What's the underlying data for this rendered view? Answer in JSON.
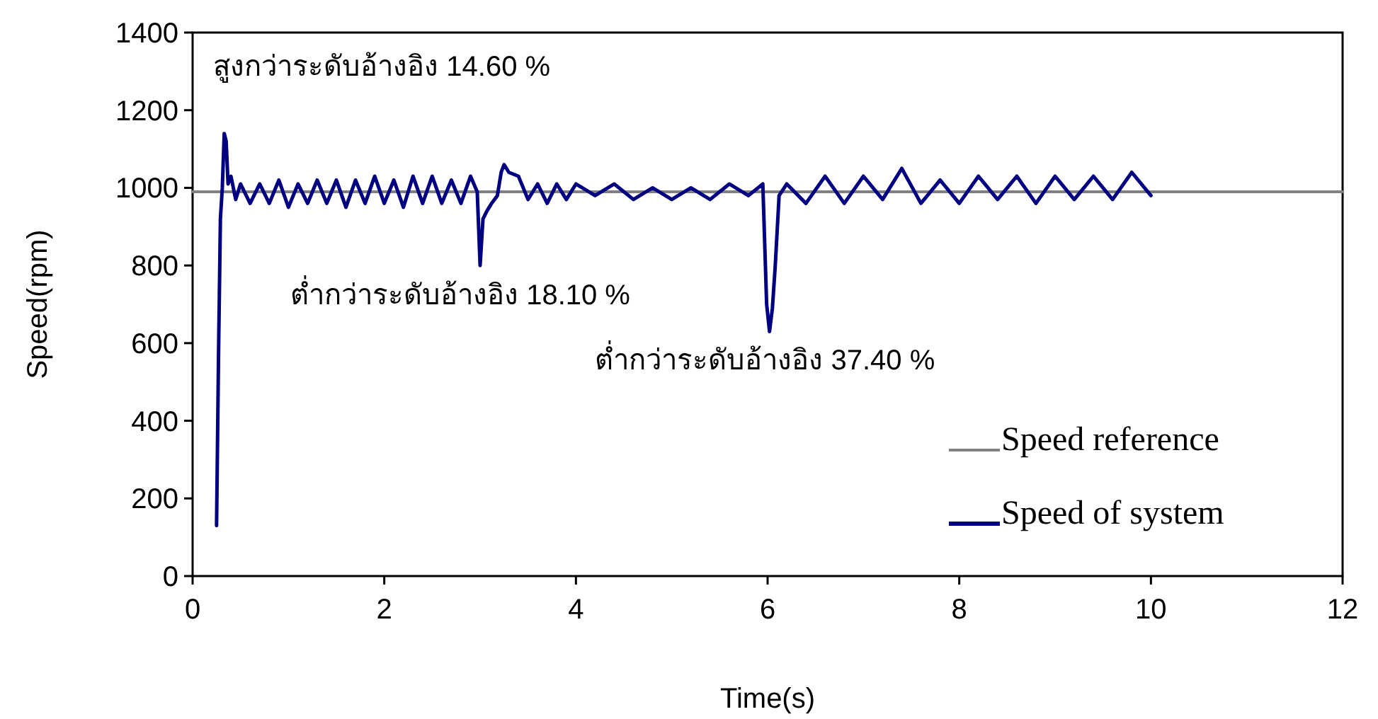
{
  "chart_data": {
    "type": "line",
    "xlabel": "Time(s)",
    "ylabel": "Speed(rpm)",
    "xlim": [
      0,
      12
    ],
    "xticks": [
      0,
      2,
      4,
      6,
      8,
      10,
      12
    ],
    "ylim": [
      0,
      1400
    ],
    "yticks": [
      0,
      200,
      400,
      600,
      800,
      1000,
      1200,
      1400
    ],
    "grid": false,
    "legend": "bottom right",
    "series": [
      {
        "name": "Speed reference",
        "color": "#808080",
        "x": [
          0,
          12
        ],
        "values": [
          990,
          990
        ]
      },
      {
        "name": "Speed of system",
        "color": "#000080",
        "x": [
          0.25,
          0.27,
          0.29,
          0.31,
          0.33,
          0.35,
          0.37,
          0.4,
          0.45,
          0.5,
          0.6,
          0.7,
          0.8,
          0.9,
          1.0,
          1.1,
          1.2,
          1.3,
          1.4,
          1.5,
          1.6,
          1.7,
          1.8,
          1.9,
          2.0,
          2.1,
          2.2,
          2.3,
          2.4,
          2.5,
          2.6,
          2.7,
          2.8,
          2.9,
          2.97,
          3.0,
          3.03,
          3.07,
          3.12,
          3.18,
          3.22,
          3.25,
          3.3,
          3.4,
          3.5,
          3.6,
          3.7,
          3.8,
          3.9,
          4.0,
          4.2,
          4.4,
          4.6,
          4.8,
          5.0,
          5.2,
          5.4,
          5.6,
          5.8,
          5.95,
          5.99,
          6.02,
          6.05,
          6.08,
          6.12,
          6.2,
          6.4,
          6.6,
          6.8,
          7.0,
          7.2,
          7.4,
          7.6,
          7.8,
          8.0,
          8.2,
          8.4,
          8.6,
          8.8,
          9.0,
          9.2,
          9.4,
          9.6,
          9.8,
          10.0
        ],
        "values": [
          130,
          560,
          920,
          1000,
          1140,
          1120,
          1010,
          1030,
          970,
          1010,
          960,
          1010,
          960,
          1020,
          950,
          1010,
          960,
          1020,
          960,
          1020,
          950,
          1020,
          960,
          1030,
          960,
          1020,
          950,
          1030,
          960,
          1030,
          960,
          1020,
          960,
          1030,
          990,
          800,
          920,
          940,
          960,
          980,
          1040,
          1060,
          1040,
          1030,
          970,
          1010,
          960,
          1010,
          970,
          1010,
          980,
          1010,
          970,
          1000,
          970,
          1000,
          970,
          1010,
          980,
          1010,
          700,
          630,
          690,
          800,
          980,
          1010,
          960,
          1030,
          960,
          1030,
          970,
          1050,
          960,
          1020,
          960,
          1030,
          970,
          1030,
          960,
          1030,
          970,
          1030,
          970,
          1040,
          980
        ]
      }
    ],
    "annotations": [
      "สูงกว่าระดับอ้างอิง 14.60 %",
      "ต่ำกว่าระดับอ้างอิง 18.10 %",
      "ต่ำกว่าระดับอ้างอิง 37.40 %"
    ]
  }
}
